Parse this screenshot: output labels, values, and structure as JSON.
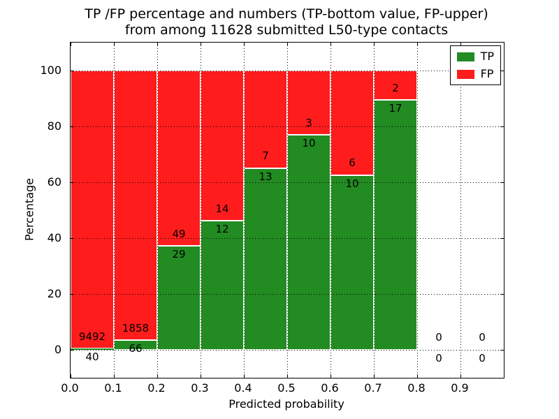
{
  "figure": {
    "title_line1": "TP /FP percentage and numbers (TP-bottom value, FP-upper)",
    "title_line2": "from among 11628 submitted L50-type contacts",
    "xlabel": "Predicted probability",
    "ylabel": "Percentage"
  },
  "chart_data": {
    "type": "bar",
    "stacked": true,
    "normalized": "each bin scaled to 100%",
    "title": "TP /FP percentage and numbers (TP-bottom value, FP-upper) from among 11628 submitted L50-type contacts",
    "xlabel": "Predicted probability",
    "ylabel": "Percentage",
    "xlim": [
      0.0,
      1.0
    ],
    "ylim": [
      -10,
      110
    ],
    "xticks": [
      "0.0",
      "0.1",
      "0.2",
      "0.3",
      "0.4",
      "0.5",
      "0.6",
      "0.7",
      "0.8",
      "0.9"
    ],
    "yticks": [
      0,
      20,
      40,
      60,
      80,
      100
    ],
    "grid": true,
    "grid_style": "dotted",
    "legend_position": "upper right",
    "total_contacts": 11628,
    "series": [
      {
        "name": "TP",
        "color": "#228b22"
      },
      {
        "name": "FP",
        "color": "#ff1c1c"
      }
    ],
    "bins": [
      {
        "range": [
          0.0,
          0.1
        ],
        "tp": 40,
        "fp": 9492,
        "tp_pct": 0.42,
        "fp_pct": 99.58
      },
      {
        "range": [
          0.1,
          0.2
        ],
        "tp": 66,
        "fp": 1858,
        "tp_pct": 3.43,
        "fp_pct": 96.57
      },
      {
        "range": [
          0.2,
          0.3
        ],
        "tp": 29,
        "fp": 49,
        "tp_pct": 37.18,
        "fp_pct": 62.82
      },
      {
        "range": [
          0.3,
          0.4
        ],
        "tp": 12,
        "fp": 14,
        "tp_pct": 46.15,
        "fp_pct": 53.85
      },
      {
        "range": [
          0.4,
          0.5
        ],
        "tp": 13,
        "fp": 7,
        "tp_pct": 65.0,
        "fp_pct": 35.0
      },
      {
        "range": [
          0.5,
          0.6
        ],
        "tp": 10,
        "fp": 3,
        "tp_pct": 76.92,
        "fp_pct": 23.08
      },
      {
        "range": [
          0.6,
          0.7
        ],
        "tp": 10,
        "fp": 6,
        "tp_pct": 62.5,
        "fp_pct": 37.5
      },
      {
        "range": [
          0.7,
          0.8
        ],
        "tp": 17,
        "fp": 2,
        "tp_pct": 89.47,
        "fp_pct": 10.53
      },
      {
        "range": [
          0.8,
          0.9
        ],
        "tp": 0,
        "fp": 0,
        "tp_pct": 0,
        "fp_pct": 0
      },
      {
        "range": [
          0.9,
          1.0
        ],
        "tp": 0,
        "fp": 0,
        "tp_pct": 0,
        "fp_pct": 0
      }
    ]
  }
}
